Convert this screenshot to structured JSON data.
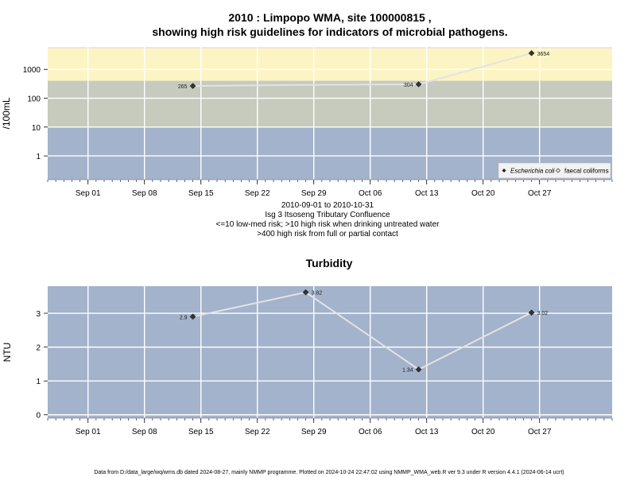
{
  "chart_data": [
    {
      "type": "line",
      "title": "2010 : Limpopo WMA, site 100000815 ,",
      "subtitle": "showing high risk guidelines for indicators of microbial pathogens.",
      "ylabel": "/100mL",
      "yscale": "log",
      "yticks": [
        "1",
        "10",
        "100",
        "1000"
      ],
      "ylim": [
        0.15,
        6000
      ],
      "xlim": [
        "2010-08-27",
        "2010-11-05"
      ],
      "xticks": [
        "Sep 01",
        "Sep 08",
        "Sep 15",
        "Sep 22",
        "Sep 29",
        "Oct 06",
        "Oct 13",
        "Oct 20",
        "Oct 27"
      ],
      "bands": [
        {
          "from": 0.15,
          "to": 10,
          "color": "#a3b3cc"
        },
        {
          "from": 10,
          "to": 400,
          "color": "#c6cbbd"
        },
        {
          "from": 400,
          "to": 5400,
          "color": "#fdf4c4"
        },
        {
          "from": 5400,
          "to": 6000,
          "color": "#fbe1e6"
        }
      ],
      "series": [
        {
          "name": "Escherichia coli",
          "marker": "diamond",
          "x": [
            "2010-09-14",
            "2010-10-12",
            "2010-10-26"
          ],
          "y": [
            265,
            304,
            3654
          ],
          "labels": [
            "265",
            "304",
            "3654"
          ]
        }
      ],
      "trend_line": {
        "x": [
          "2010-09-14",
          "2010-09-28",
          "2010-10-12",
          "2010-10-26"
        ],
        "y": [
          265,
          290,
          304,
          3654
        ]
      },
      "legend": {
        "position": "bottom-right",
        "entries": [
          "Escherichia coli",
          "faecal coliforms"
        ]
      },
      "caption": [
        "2010-09-01 to 2010-10-31",
        "Isg 3 Itsoseng Tributary Confluence",
        "<=10 low-med risk; >10 high risk when drinking untreated water",
        ">400 high risk from full or partial contact"
      ]
    },
    {
      "type": "line",
      "title": "Turbidity",
      "ylabel": "NTU",
      "yticks": [
        "0",
        "1",
        "2",
        "3"
      ],
      "ylim": [
        -0.1,
        3.8
      ],
      "xlim": [
        "2010-08-27",
        "2010-11-05"
      ],
      "xticks": [
        "Sep 01",
        "Sep 08",
        "Sep 15",
        "Sep 22",
        "Sep 29",
        "Oct 06",
        "Oct 13",
        "Oct 20",
        "Oct 27"
      ],
      "background": "#a3b3cc",
      "series": [
        {
          "name": "",
          "marker": "diamond",
          "x": [
            "2010-09-14",
            "2010-09-28",
            "2010-10-12",
            "2010-10-26"
          ],
          "y": [
            2.9,
            3.62,
            1.34,
            3.02
          ],
          "labels": [
            "2.9",
            "3.62",
            "1.34",
            "3.02"
          ]
        }
      ]
    }
  ],
  "footer": "Data from D:/data_large/wq/wms.db dated 2024-08-27, mainly NMMP programme. Plotted on 2024-10-24 22:47:02 using NMMP_WMA_web.R ver 9.3 under R version 4.4.1 (2024-06-14 ucrt)"
}
